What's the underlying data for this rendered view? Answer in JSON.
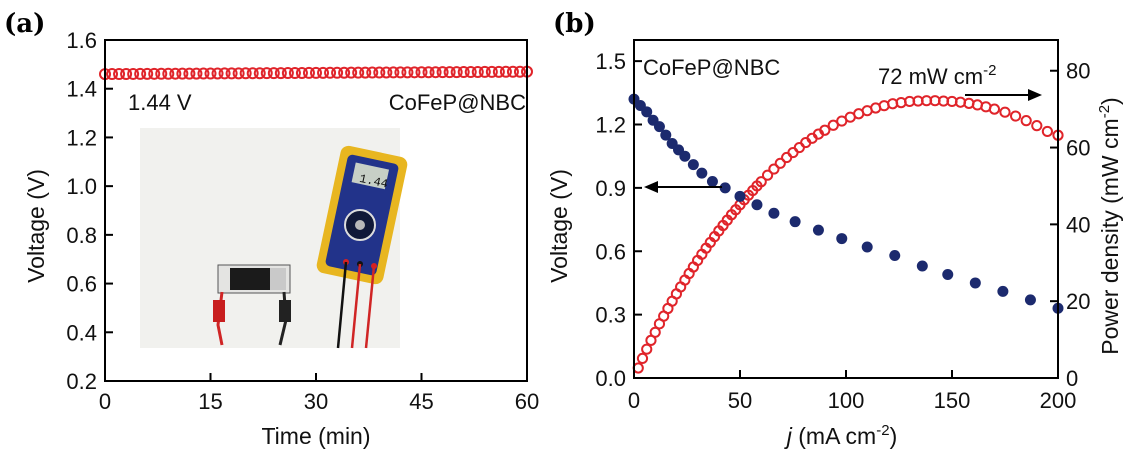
{
  "chart_data": [
    {
      "panel_label": "(a)",
      "type": "scatter",
      "xlabel": "Time (min)",
      "ylabel": "Voltage (V)",
      "xlim": [
        0,
        60
      ],
      "ylim": [
        0.2,
        1.6
      ],
      "xticks": [
        0,
        15,
        30,
        45,
        60
      ],
      "yticks": [
        0.2,
        0.4,
        0.6,
        0.8,
        1.0,
        1.2,
        1.4,
        1.6
      ],
      "grid": false,
      "legend": "none",
      "series": [
        {
          "marker": "open-circle",
          "color": "#e0242a",
          "x_range": [
            0,
            60
          ],
          "num_points": 61,
          "y_start": 1.46,
          "y_end": 1.47
        }
      ],
      "annotations": {
        "voltage_label": "1.44 V",
        "sample_label": "CoFeP@NBC"
      },
      "inset": "photo-multimeter-icon"
    },
    {
      "panel_label": "(b)",
      "type": "scatter",
      "xlabel_italic": "j",
      "xlabel_rest": " (mA cm",
      "xlabel_sup": "-2",
      "xlabel_end": ")",
      "ylabel": "Voltage (V)",
      "y2label_main": "Power density (mW cm",
      "y2label_sup": "-2",
      "y2label_end": ")",
      "xlim": [
        0,
        200
      ],
      "ylim": [
        0.0,
        1.6
      ],
      "y2lim": [
        0,
        88
      ],
      "xticks": [
        0,
        50,
        100,
        150,
        200
      ],
      "yticks": [
        0.0,
        0.3,
        0.6,
        0.9,
        1.2,
        1.5
      ],
      "y2ticks": [
        0,
        20,
        40,
        60,
        80
      ],
      "grid": false,
      "legend": "none",
      "series": [
        {
          "axis": "left",
          "marker": "filled-circle",
          "color": "#1c2a6e",
          "x": [
            0,
            3,
            6,
            9,
            12,
            15,
            18,
            21,
            24,
            28,
            32,
            37,
            43,
            50,
            58,
            66,
            76,
            87,
            98,
            110,
            123,
            136,
            148,
            161,
            174,
            187,
            200
          ],
          "y": [
            1.32,
            1.29,
            1.26,
            1.22,
            1.19,
            1.15,
            1.11,
            1.08,
            1.05,
            1.01,
            0.97,
            0.93,
            0.9,
            0.86,
            0.82,
            0.78,
            0.74,
            0.7,
            0.66,
            0.62,
            0.58,
            0.53,
            0.49,
            0.45,
            0.41,
            0.37,
            0.33
          ]
        },
        {
          "axis": "right",
          "marker": "open-circle",
          "color": "#e0242a",
          "x": [
            2,
            4,
            6,
            8,
            10,
            12,
            14,
            16,
            18,
            20,
            22,
            24,
            26,
            28,
            30,
            32,
            34,
            36,
            38,
            40,
            42,
            44,
            46,
            48,
            50,
            52,
            54,
            56,
            58,
            60,
            63,
            66,
            69,
            72,
            75,
            78,
            81,
            84,
            87,
            90,
            94,
            98,
            102,
            106,
            110,
            114,
            118,
            122,
            126,
            130,
            134,
            138,
            142,
            146,
            150,
            154,
            158,
            162,
            166,
            170,
            175,
            180,
            185,
            190,
            195,
            200
          ],
          "y": [
            2.6,
            5.1,
            7.5,
            9.8,
            11.9,
            14.1,
            16.1,
            18.1,
            20.0,
            21.9,
            23.7,
            25.5,
            27.2,
            28.9,
            30.6,
            32.2,
            33.8,
            35.3,
            36.8,
            38.3,
            39.7,
            41.1,
            42.5,
            43.8,
            45.1,
            46.4,
            47.6,
            48.8,
            50.0,
            51.1,
            52.8,
            54.4,
            55.9,
            57.4,
            58.7,
            60.0,
            61.3,
            62.4,
            63.5,
            64.5,
            65.8,
            66.9,
            67.9,
            68.8,
            69.6,
            70.3,
            70.9,
            71.4,
            71.7,
            72.0,
            72.1,
            72.2,
            72.2,
            72.1,
            72.0,
            71.8,
            71.5,
            71.1,
            70.6,
            70.0,
            69.2,
            68.2,
            67.0,
            65.7,
            64.2,
            63.2
          ]
        }
      ],
      "annotations": {
        "sample_label": "CoFeP@NBC",
        "peak_label_main": "72 mW cm",
        "peak_label_sup": "-2"
      }
    }
  ]
}
